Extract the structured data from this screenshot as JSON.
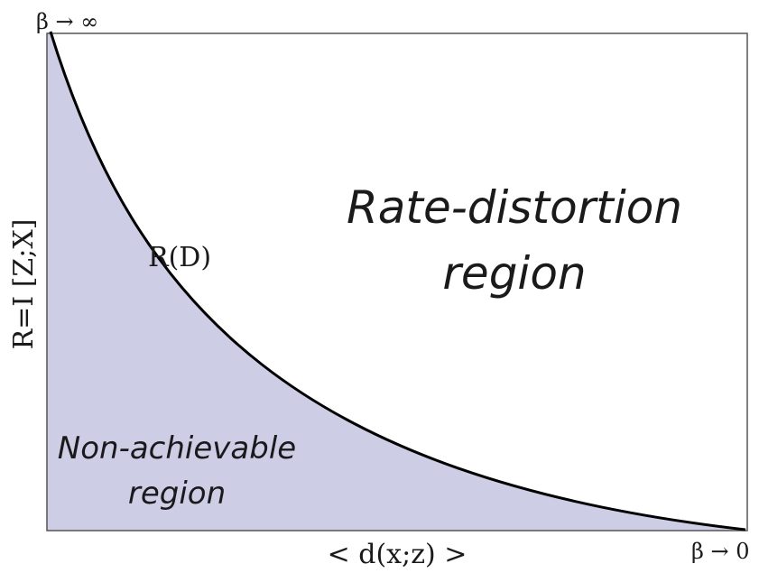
{
  "figure": {
    "y_axis_label": "R=I [Z;X]",
    "x_axis_label": "< d(x;z) >",
    "beta_inf_label": "β → ∞",
    "beta_zero_label": "β → 0",
    "curve_label": "R(D)",
    "rate_distortion_region_line1": "Rate-distortion",
    "rate_distortion_region_line2": "region",
    "non_achievable_region_line1": "Non-achievable",
    "non_achievable_region_line2": "region"
  },
  "colors": {
    "fill": "#cdcde6",
    "curve": "#000000",
    "frame": "#555555",
    "text": "#1a1a1a"
  }
}
